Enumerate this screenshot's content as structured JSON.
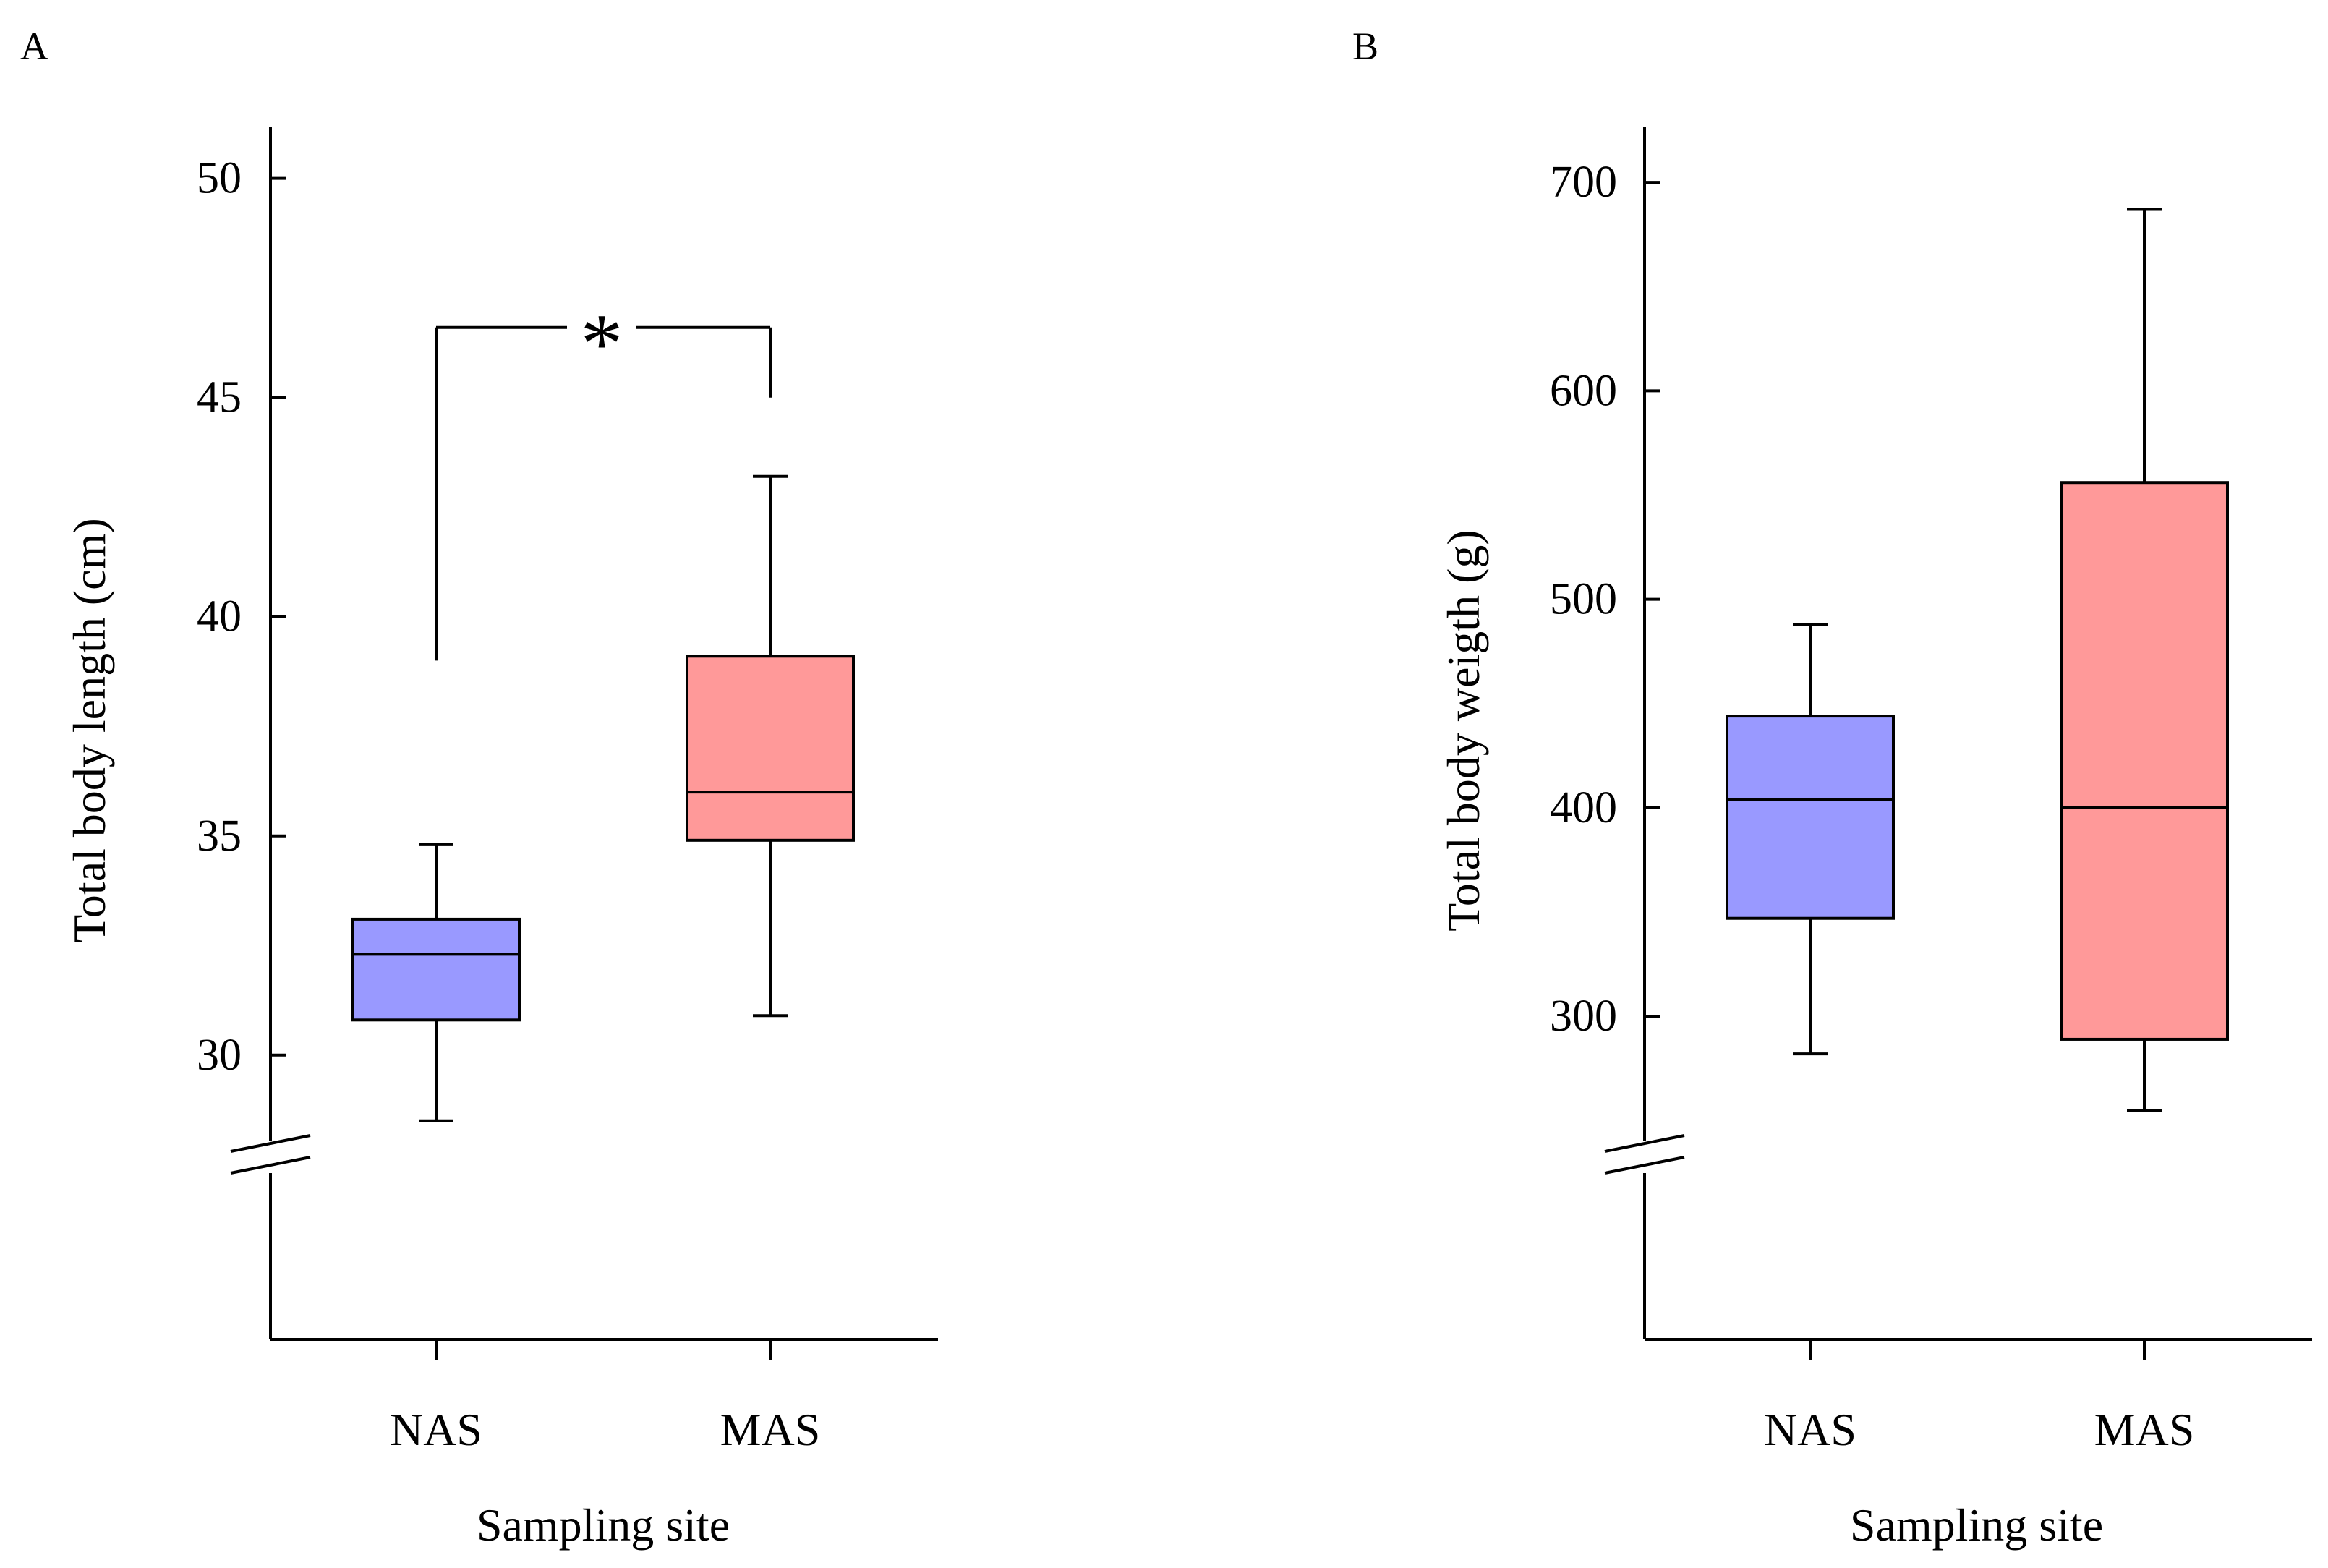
{
  "figure": {
    "panel_labels": [
      "A",
      "B"
    ]
  },
  "colors": {
    "NAS": "#9999ff",
    "MAS": "#ff9999",
    "axis": "#000000"
  },
  "chart_data": [
    {
      "type": "box",
      "panel": "A",
      "title": "",
      "xlabel": "Sampling site",
      "ylabel": "Total body length (cm)",
      "categories": [
        "NAS",
        "MAS"
      ],
      "yticks": [
        30,
        35,
        40,
        45,
        50
      ],
      "ylim": [
        24.7,
        51.1
      ],
      "axis_break": true,
      "boxes": [
        {
          "name": "NAS",
          "whisker_low": 28.5,
          "q1": 30.8,
          "median": 32.3,
          "q3": 33.1,
          "whisker_high": 34.8
        },
        {
          "name": "MAS",
          "whisker_low": 30.9,
          "q1": 34.9,
          "median": 36.0,
          "q3": 39.1,
          "whisker_high": 43.2
        }
      ],
      "significance": {
        "symbol": "*",
        "between": [
          "NAS",
          "MAS"
        ],
        "y": 46.6,
        "left_leg_end": 39.0,
        "right_leg_end": 45.0
      }
    },
    {
      "type": "box",
      "panel": "B",
      "title": "",
      "xlabel": "Sampling site",
      "ylabel": "Total body weigth (g)",
      "categories": [
        "NAS",
        "MAS"
      ],
      "yticks": [
        300,
        400,
        500,
        600,
        700
      ],
      "ylim": [
        170,
        725
      ],
      "axis_break": true,
      "boxes": [
        {
          "name": "NAS",
          "whisker_low": 282,
          "q1": 347,
          "median": 404,
          "q3": 444,
          "whisker_high": 488
        },
        {
          "name": "MAS",
          "whisker_low": 255,
          "q1": 289,
          "median": 400,
          "q3": 556,
          "whisker_high": 687
        }
      ]
    }
  ]
}
